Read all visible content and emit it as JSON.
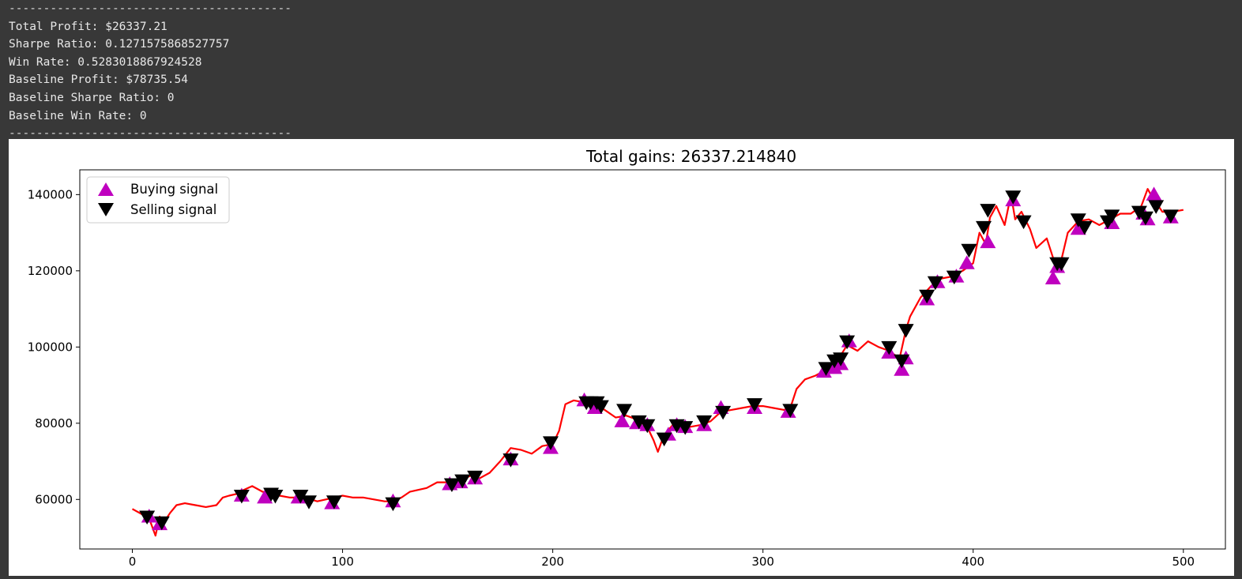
{
  "console": {
    "separator": "-----------------------------------------",
    "lines": [
      "Total Profit: $26337.21",
      "Sharpe Ratio: 0.1271575868527757",
      "Win Rate: 0.5283018867924528",
      "Baseline Profit: $78735.54",
      "Baseline Sharpe Ratio: 0",
      "Baseline Win Rate: 0"
    ]
  },
  "chart_data": {
    "type": "line",
    "title": "Total gains: 26337.214840",
    "xlabel": "",
    "ylabel": "",
    "xlim": [
      -25,
      520
    ],
    "ylim": [
      47000,
      146500
    ],
    "xticks": [
      0,
      100,
      200,
      300,
      400,
      500
    ],
    "yticks": [
      60000,
      80000,
      100000,
      120000,
      140000
    ],
    "grid": false,
    "legend_position": "top-left",
    "colors": {
      "price": "#ff0000",
      "buy": "#bf00bf",
      "sell": "#000000"
    },
    "legend": [
      {
        "label": "Buying signal",
        "marker": "triangle-up",
        "color": "#bf00bf"
      },
      {
        "label": "Selling signal",
        "marker": "triangle-down",
        "color": "#000000"
      }
    ],
    "price_series": {
      "x": [
        0,
        5,
        8,
        11,
        13,
        15,
        18,
        21,
        25,
        30,
        35,
        40,
        43,
        46,
        50,
        53,
        57,
        62,
        66,
        70,
        75,
        80,
        85,
        88,
        92,
        96,
        100,
        105,
        110,
        115,
        120,
        124,
        128,
        132,
        136,
        140,
        145,
        150,
        155,
        158,
        162,
        165,
        170,
        175,
        180,
        185,
        190,
        195,
        200,
        203,
        206,
        210,
        215,
        218,
        222,
        226,
        230,
        235,
        240,
        245,
        248,
        250,
        253,
        257,
        260,
        265,
        270,
        275,
        280,
        285,
        290,
        295,
        300,
        305,
        310,
        313,
        316,
        320,
        325,
        330,
        335,
        340,
        345,
        350,
        355,
        360,
        365,
        368,
        370,
        375,
        380,
        385,
        390,
        395,
        400,
        403,
        406,
        408,
        411,
        415,
        418,
        420,
        423,
        427,
        430,
        435,
        440,
        442,
        445,
        450,
        455,
        460,
        465,
        470,
        475,
        480,
        483,
        485,
        490,
        495,
        500
      ],
      "y": [
        57500,
        56000,
        55000,
        50500,
        55500,
        54000,
        56500,
        58500,
        59000,
        58500,
        58000,
        58500,
        60500,
        61000,
        61500,
        62500,
        63500,
        62000,
        61500,
        61000,
        60500,
        60500,
        60000,
        59500,
        60000,
        60500,
        61000,
        60500,
        60500,
        60000,
        59500,
        59500,
        60500,
        62000,
        62500,
        63000,
        64500,
        64500,
        65000,
        65500,
        66500,
        65500,
        67000,
        70000,
        73500,
        73000,
        72000,
        74000,
        74500,
        78000,
        85000,
        86000,
        85500,
        86000,
        84500,
        83000,
        81500,
        82000,
        81000,
        79000,
        75500,
        72500,
        77000,
        79500,
        80000,
        79000,
        79500,
        80500,
        83000,
        83500,
        84000,
        84500,
        84500,
        84000,
        83500,
        84000,
        89000,
        91500,
        92500,
        94000,
        96000,
        100500,
        99000,
        101500,
        100000,
        99000,
        97000,
        104500,
        108000,
        113000,
        116000,
        118000,
        118500,
        120000,
        122000,
        130000,
        127000,
        134000,
        137000,
        132000,
        140000,
        133500,
        135500,
        131000,
        126000,
        128500,
        120000,
        123000,
        130000,
        133000,
        133500,
        132000,
        133500,
        135000,
        135000,
        137000,
        141500,
        139500,
        135500,
        135500,
        136000
      ]
    },
    "buy_signals": {
      "x": [
        8,
        13,
        52,
        63,
        79,
        95,
        124,
        151,
        156,
        163,
        180,
        199,
        215,
        220,
        233,
        240,
        245,
        255,
        259,
        263,
        272,
        280,
        296,
        312,
        329,
        334,
        337,
        341,
        360,
        366,
        368,
        378,
        383,
        392,
        397,
        407,
        419,
        438,
        440,
        450,
        466,
        481,
        483,
        486,
        494
      ],
      "y": [
        55500,
        53500,
        61000,
        60500,
        60500,
        59000,
        59500,
        64000,
        64500,
        65500,
        70500,
        73500,
        86000,
        84000,
        80500,
        80000,
        79500,
        77000,
        79500,
        79000,
        79500,
        84000,
        84000,
        83000,
        93500,
        94500,
        95500,
        101500,
        98500,
        94000,
        97000,
        112500,
        117000,
        118500,
        122000,
        127500,
        138500,
        118000,
        121000,
        131000,
        132500,
        135000,
        133500,
        140000,
        134000
      ]
    },
    "sell_signals": {
      "x": [
        7,
        14,
        52,
        66,
        68,
        80,
        84,
        96,
        124,
        152,
        157,
        163,
        180,
        199,
        216,
        218,
        221,
        223,
        234,
        241,
        245,
        253,
        259,
        263,
        272,
        281,
        296,
        313,
        330,
        334,
        337,
        340,
        360,
        366,
        368,
        378,
        382,
        391,
        398,
        405,
        407,
        419,
        424,
        440,
        442,
        450,
        453,
        464,
        466,
        479,
        482,
        487,
        494
      ],
      "y": [
        55500,
        54000,
        61000,
        61500,
        61000,
        61000,
        59500,
        59500,
        59000,
        64000,
        65000,
        66000,
        70500,
        75000,
        85500,
        85500,
        85500,
        84500,
        83500,
        80500,
        79500,
        76000,
        79500,
        79000,
        80500,
        83000,
        85000,
        83500,
        94500,
        96500,
        97000,
        101500,
        100000,
        96500,
        104500,
        113500,
        117000,
        118500,
        125500,
        131500,
        136000,
        139500,
        133000,
        122000,
        122000,
        133500,
        131500,
        133000,
        134500,
        135500,
        134000,
        137000,
        134500
      ]
    }
  }
}
